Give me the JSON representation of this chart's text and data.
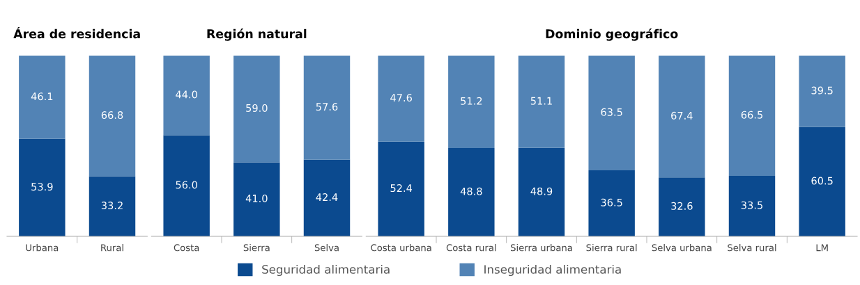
{
  "chart_data": [
    {
      "type": "bar",
      "title": "Área de residencia",
      "stacked": true,
      "grid": false,
      "categories": [
        "Urbana",
        "Rural"
      ],
      "series": [
        {
          "color": "#0b4a8f",
          "values": [
            53.9,
            33.2
          ],
          "value_labels": [
            "53.9",
            "33.2"
          ]
        },
        {
          "color": "#5283b5",
          "values": [
            46.1,
            66.8
          ],
          "value_labels": [
            "46.1",
            "66.8"
          ]
        }
      ]
    },
    {
      "type": "bar",
      "title": "Región natural",
      "stacked": true,
      "grid": false,
      "legend": "bottom",
      "categories": [
        "Costa",
        "Sierra",
        "Selva"
      ],
      "series": [
        {
          "name": "Seguridad alimentaria",
          "color": "#0b4a8f",
          "values": [
            56.0,
            41.0,
            42.4
          ],
          "value_labels": [
            "56.0",
            "41.0",
            "42.4"
          ]
        },
        {
          "name": "Inseguridad alimentaria",
          "color": "#5283b5",
          "values": [
            44.0,
            59.0,
            57.6
          ],
          "value_labels": [
            "44.0",
            "59.0",
            "57.6"
          ]
        }
      ]
    },
    {
      "type": "bar",
      "title": "Dominio geográfico",
      "stacked": true,
      "grid": false,
      "categories": [
        "Costa urbana",
        "Costa rural",
        "Sierra urbana",
        "Sierra rural",
        "Selva urbana",
        "Selva rural",
        "LM"
      ],
      "series": [
        {
          "color": "#0b4a8f",
          "values": [
            52.4,
            48.8,
            48.9,
            36.5,
            32.6,
            33.5,
            60.5
          ],
          "value_labels": [
            "52.4",
            "48.8",
            "48.9",
            "36.5",
            "32.6",
            "33.5",
            "60.5"
          ]
        },
        {
          "color": "#5283b5",
          "values": [
            47.6,
            51.2,
            51.1,
            63.5,
            67.4,
            66.5,
            39.5
          ],
          "value_labels": [
            "47.6",
            "51.2",
            "51.1",
            "63.5",
            "67.4",
            "66.5",
            "39.5"
          ]
        }
      ]
    }
  ]
}
